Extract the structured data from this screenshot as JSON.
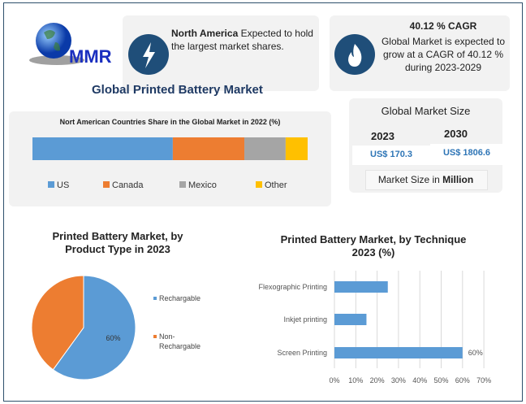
{
  "logo": {
    "text": "MMR"
  },
  "info1": {
    "bold": "North America",
    "text": " Expected to hold the largest market shares.",
    "icon": "lightning-icon"
  },
  "info2": {
    "title": "40.12 % CAGR",
    "text": "Global Market is expected to grow at a CAGR of 40.12 % during 2023-2029",
    "icon": "flame-icon"
  },
  "main_title": "Global Printed Battery Market",
  "market_size": {
    "title": "Global Market Size",
    "year1": "2023",
    "value1": "US$ 170.3",
    "year2": "2030",
    "value2": "US$ 1806.6",
    "unit_prefix": "Market Size in ",
    "unit_bold": "Million"
  },
  "colors": {
    "blue": "#5b9bd5",
    "orange": "#ed7d31",
    "gray": "#a5a5a5",
    "yellow": "#ffc000",
    "navy": "#1f4e79",
    "value_blue": "#2e75b6"
  },
  "chart_data": [
    {
      "type": "bar",
      "orientation": "horizontal-stacked",
      "title": "Nort American Countries Share in the Global Market in 2022 (%)",
      "series": [
        {
          "name": "US",
          "values": [
            51
          ]
        },
        {
          "name": "Canada",
          "values": [
            26
          ]
        },
        {
          "name": "Mexico",
          "values": [
            15
          ]
        },
        {
          "name": "Other",
          "values": [
            8
          ]
        }
      ],
      "legend": "bottom",
      "grid": false
    },
    {
      "type": "pie",
      "title": "Printed Battery Market, by Product Type in 2023",
      "categories": [
        "Rechargable",
        "Non-Rechargable"
      ],
      "values": [
        60,
        40
      ],
      "data_labels": [
        "60%",
        ""
      ],
      "legend": "right"
    },
    {
      "type": "bar",
      "orientation": "horizontal",
      "title": "Printed Battery Market, by Technique 2023 (%)",
      "categories": [
        "Flexographic Printing",
        "Inkjet printing",
        "Screen Printing"
      ],
      "values": [
        25,
        15,
        60
      ],
      "data_labels": [
        "",
        "",
        "60%"
      ],
      "xlim": [
        0,
        70
      ],
      "xticks": [
        "0%",
        "10%",
        "20%",
        "30%",
        "40%",
        "50%",
        "60%",
        "70%"
      ],
      "grid": true
    }
  ]
}
